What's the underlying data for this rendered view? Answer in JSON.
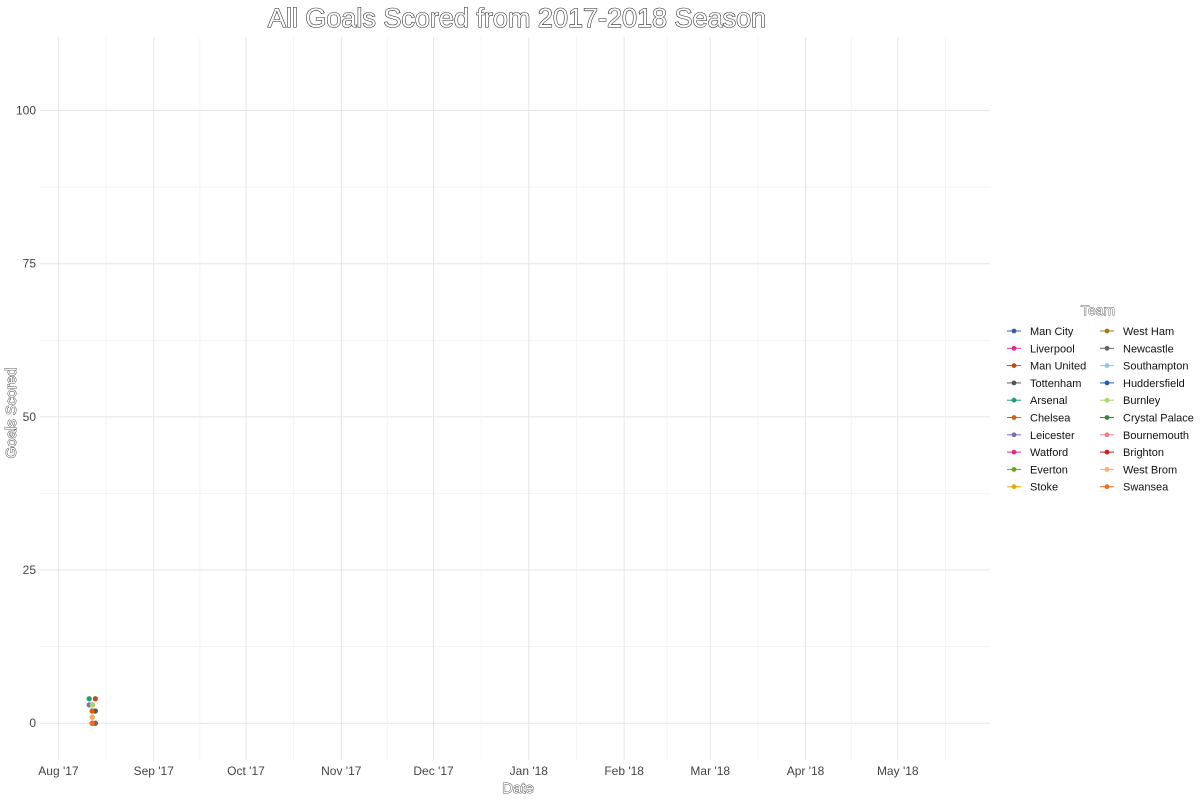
{
  "chart_data": {
    "type": "scatter",
    "title": "All Goals Scored from 2017-2018 Season",
    "xlabel": "Date",
    "ylabel": "Goals Scored",
    "xlim": [
      "2017-07-26",
      "2018-05-31"
    ],
    "ylim": [
      -6,
      112
    ],
    "y_ticks": [
      0,
      25,
      50,
      75,
      100
    ],
    "x_ticks": [
      {
        "date": "2017-08-01",
        "label": "Aug '17"
      },
      {
        "date": "2017-09-01",
        "label": "Sep '17"
      },
      {
        "date": "2017-10-01",
        "label": "Oct '17"
      },
      {
        "date": "2017-11-01",
        "label": "Nov '17"
      },
      {
        "date": "2017-12-01",
        "label": "Dec '17"
      },
      {
        "date": "2018-01-01",
        "label": "Jan '18"
      },
      {
        "date": "2018-02-01",
        "label": "Feb '18"
      },
      {
        "date": "2018-03-01",
        "label": "Mar '18"
      },
      {
        "date": "2018-04-01",
        "label": "Apr '18"
      },
      {
        "date": "2018-05-01",
        "label": "May '18"
      }
    ],
    "grid": true,
    "legend_title": "Team",
    "legend_position": "right",
    "series": [
      {
        "name": "Man City",
        "color": "#3b5ba5",
        "points": [
          {
            "x": "2017-08-12",
            "y": 2
          }
        ]
      },
      {
        "name": "Liverpool",
        "color": "#e7298a",
        "points": [
          {
            "x": "2017-08-12",
            "y": 3
          }
        ]
      },
      {
        "name": "Man United",
        "color": "#c04a1a",
        "points": [
          {
            "x": "2017-08-13",
            "y": 4
          }
        ]
      },
      {
        "name": "Tottenham",
        "color": "#555555",
        "points": [
          {
            "x": "2017-08-13",
            "y": 2
          }
        ]
      },
      {
        "name": "Arsenal",
        "color": "#1b9e77",
        "points": [
          {
            "x": "2017-08-11",
            "y": 4
          }
        ]
      },
      {
        "name": "Chelsea",
        "color": "#d95f02",
        "points": [
          {
            "x": "2017-08-12",
            "y": 2
          }
        ]
      },
      {
        "name": "Leicester",
        "color": "#7570b3",
        "points": [
          {
            "x": "2017-08-11",
            "y": 3
          }
        ]
      },
      {
        "name": "Watford",
        "color": "#e7298a",
        "points": [
          {
            "x": "2017-08-12",
            "y": 3
          }
        ]
      },
      {
        "name": "Everton",
        "color": "#66a61e",
        "points": [
          {
            "x": "2017-08-12",
            "y": 1
          }
        ]
      },
      {
        "name": "Stoke",
        "color": "#e6ab02",
        "points": [
          {
            "x": "2017-08-12",
            "y": 0
          }
        ]
      },
      {
        "name": "West Ham",
        "color": "#a6761d",
        "points": [
          {
            "x": "2017-08-13",
            "y": 0
          }
        ]
      },
      {
        "name": "Newcastle",
        "color": "#666666",
        "points": [
          {
            "x": "2017-08-13",
            "y": 0
          }
        ]
      },
      {
        "name": "Southampton",
        "color": "#8cc4e6",
        "points": [
          {
            "x": "2017-08-12",
            "y": 0
          }
        ]
      },
      {
        "name": "Huddersfield",
        "color": "#1f5fa8",
        "points": [
          {
            "x": "2017-08-12",
            "y": 3
          }
        ]
      },
      {
        "name": "Burnley",
        "color": "#a6d96a",
        "points": [
          {
            "x": "2017-08-12",
            "y": 3
          }
        ]
      },
      {
        "name": "Crystal Palace",
        "color": "#2e8b2e",
        "points": [
          {
            "x": "2017-08-12",
            "y": 0
          }
        ]
      },
      {
        "name": "Bournemouth",
        "color": "#f08080",
        "points": [
          {
            "x": "2017-08-12",
            "y": 0
          }
        ]
      },
      {
        "name": "Brighton",
        "color": "#d7191c",
        "points": [
          {
            "x": "2017-08-12",
            "y": 0
          }
        ]
      },
      {
        "name": "West Brom",
        "color": "#fdae61",
        "points": [
          {
            "x": "2017-08-12",
            "y": 1
          }
        ]
      },
      {
        "name": "Swansea",
        "color": "#f46d1a",
        "points": [
          {
            "x": "2017-08-12",
            "y": 0
          }
        ]
      }
    ]
  }
}
